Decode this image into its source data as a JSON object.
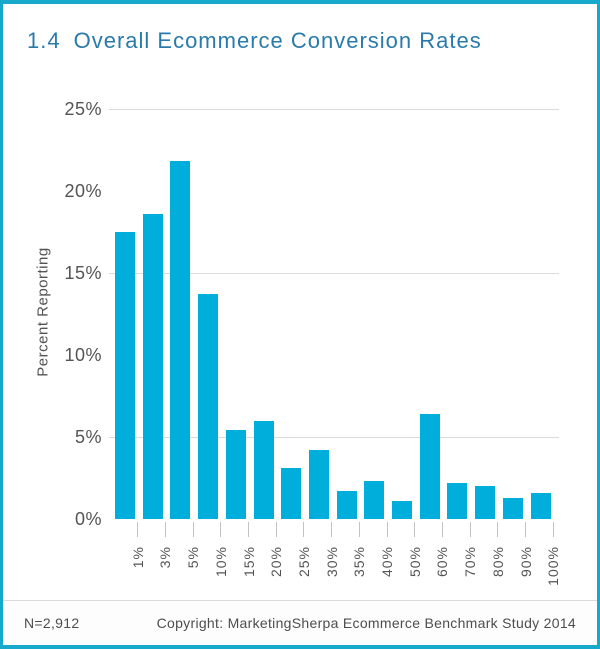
{
  "page": {
    "title": {
      "number": "1.4",
      "text": "Overall Ecommerce Conversion Rates"
    },
    "footer": {
      "sample_size": "N=2,912",
      "copyright": "Copyright: MarketingSherpa Ecommerce Benchmark Study 2014"
    }
  },
  "colors": {
    "bar": "#00AEDB",
    "frame_border": "#17A9CB",
    "title_text": "#2A7AAB",
    "gridline": "#DBDBDB",
    "axis_tick": "#C3C3C3",
    "axis_text": "#545454",
    "footer_text": "#4D4D4D",
    "divider": "#D9D9D9"
  },
  "chart_data": {
    "type": "bar",
    "title": "1.4 Overall Ecommerce Conversion Rates",
    "xlabel": "",
    "ylabel": "Percent Reporting",
    "categories": [
      "1%",
      "3%",
      "5%",
      "10%",
      "15%",
      "20%",
      "25%",
      "30%",
      "35%",
      "40%",
      "50%",
      "60%",
      "70%",
      "80%",
      "90%",
      "100%"
    ],
    "values": [
      17.5,
      18.6,
      21.8,
      13.7,
      5.4,
      6.0,
      3.1,
      4.2,
      1.7,
      2.3,
      1.1,
      6.4,
      2.2,
      2.0,
      1.3,
      1.6
    ],
    "ylim": [
      0,
      25
    ],
    "yticks": [
      0,
      5,
      10,
      15,
      20,
      25
    ],
    "ytick_labels": [
      "0%",
      "5%",
      "10%",
      "15%",
      "20%",
      "25%"
    ],
    "gridlines_at": [
      5,
      15,
      25
    ],
    "grid": "horizontal",
    "legend": "none",
    "x_label_rotation": 90,
    "bar_color": "#00AEDB"
  }
}
